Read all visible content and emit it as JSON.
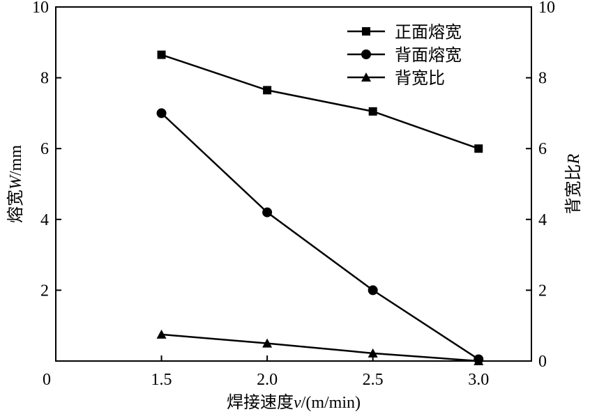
{
  "chart_data": {
    "type": "line",
    "x": [
      1.5,
      2.0,
      2.5,
      3.0
    ],
    "x_tick_labels": [
      "1.5",
      "2.0",
      "2.5",
      "3.0"
    ],
    "xlim": [
      1.0,
      3.25
    ],
    "ylim": [
      0,
      10
    ],
    "y2lim": [
      0,
      10
    ],
    "y_ticks": [
      "0",
      "2",
      "4",
      "6",
      "8",
      "10"
    ],
    "y2_ticks": [
      "0",
      "2",
      "4",
      "6",
      "8",
      "10"
    ],
    "xlabel": {
      "text": "焊接速度",
      "var": "v",
      "unit": "/(m/min)"
    },
    "ylabel": {
      "text": "熔宽",
      "var": "W",
      "unit": "/mm"
    },
    "y2label": {
      "text": "背宽比",
      "var": "R"
    },
    "legend_position": "top-right",
    "grid": false,
    "series": [
      {
        "name": "正面熔宽",
        "marker": "square",
        "axis": "left",
        "values": [
          8.65,
          7.65,
          7.05,
          6.0
        ]
      },
      {
        "name": "背面熔宽",
        "marker": "circle",
        "axis": "left",
        "values": [
          7.0,
          4.2,
          2.0,
          0.05
        ]
      },
      {
        "name": "背宽比",
        "marker": "triangle",
        "axis": "right",
        "values": [
          0.75,
          0.5,
          0.22,
          0.0
        ]
      }
    ]
  }
}
